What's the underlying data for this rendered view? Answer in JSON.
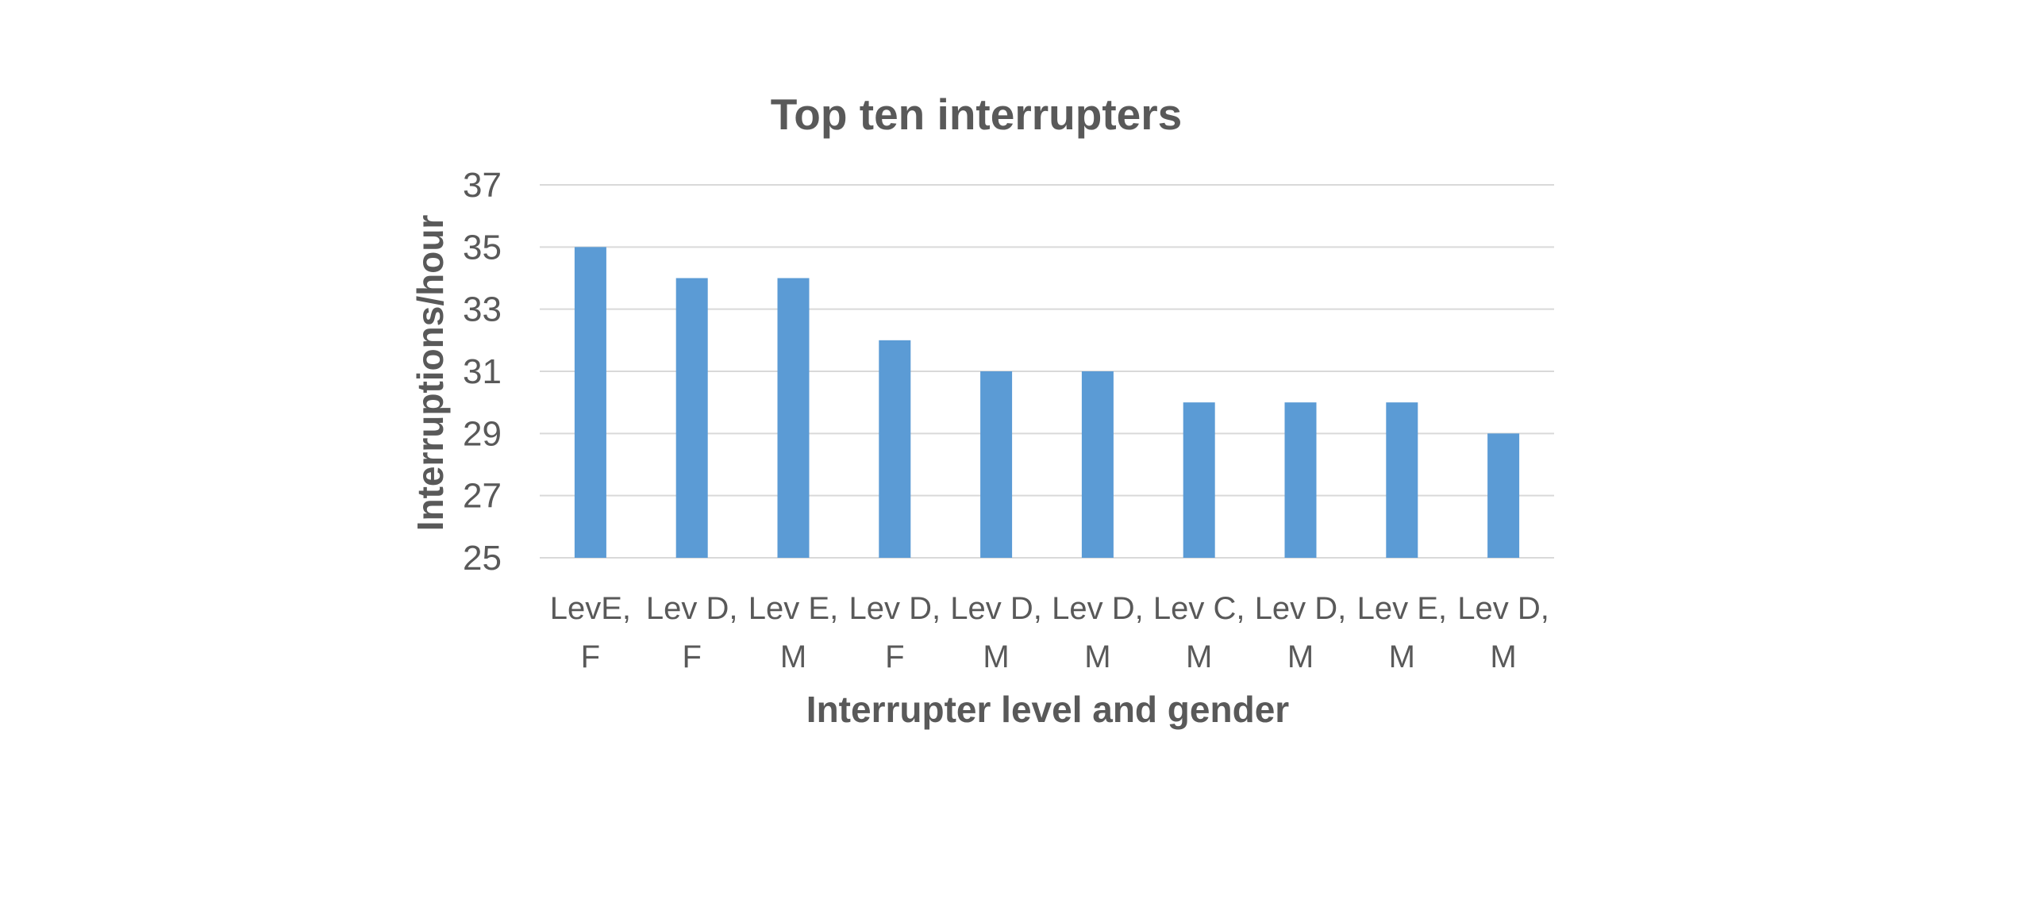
{
  "chart_data": {
    "type": "bar",
    "title": "Top ten interrupters",
    "xlabel": "Interrupter level and gender",
    "ylabel": "Interruptions/hour",
    "categories": [
      [
        "LevE,",
        "F"
      ],
      [
        "Lev D,",
        "F"
      ],
      [
        "Lev E,",
        "M"
      ],
      [
        "Lev D,",
        "F"
      ],
      [
        "Lev D,",
        "M"
      ],
      [
        "Lev D,",
        "M"
      ],
      [
        "Lev C,",
        "M"
      ],
      [
        "Lev D,",
        "M"
      ],
      [
        "Lev E,",
        "M"
      ],
      [
        "Lev D,",
        "M"
      ]
    ],
    "values": [
      35,
      34,
      34,
      32,
      31,
      31,
      30,
      30,
      30,
      29
    ],
    "ylim": [
      25,
      37
    ],
    "yticks": [
      25,
      27,
      29,
      31,
      33,
      35,
      37
    ],
    "grid": true,
    "legend": "none",
    "colors": {
      "bar": "#5B9BD5",
      "grid": "#D9D9D9",
      "text": "#595959"
    }
  }
}
